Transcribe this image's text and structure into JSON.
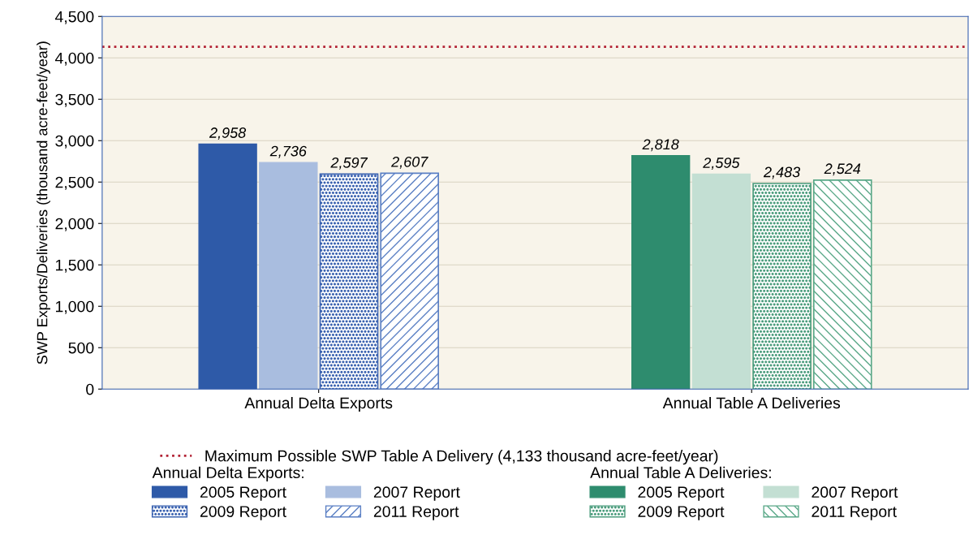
{
  "chart_data": {
    "type": "bar",
    "ylabel": "SWP Exports/Deliveries (thousand acre-feet/year)",
    "categories": [
      "Annual Delta Exports",
      "Annual Table A Deliveries"
    ],
    "series": [
      {
        "name": "2005 Report",
        "color": "#2e5aa8",
        "values": [
          2958,
          null
        ]
      },
      {
        "name": "2007 Report",
        "color": "#a9bddf",
        "values": [
          2736,
          null
        ]
      },
      {
        "name": "2009 Report",
        "color": "#3a62b0",
        "values": [
          2597,
          null
        ]
      },
      {
        "name": "2011 Report",
        "color": "#5a7fc4",
        "values": [
          2607,
          null
        ]
      },
      {
        "name": "2005 Report",
        "color": "#2e8c6e",
        "values": [
          null,
          2818
        ]
      },
      {
        "name": "2007 Report",
        "color": "#c3dfd3",
        "values": [
          null,
          2595
        ]
      },
      {
        "name": "2009 Report",
        "color": "#4a9c7c",
        "values": [
          null,
          2483
        ]
      },
      {
        "name": "2011 Report",
        "color": "#5aa888",
        "values": [
          null,
          2524
        ]
      }
    ],
    "ylim": [
      0,
      4500
    ],
    "yticks": [
      0,
      500,
      {
        "value": 1000,
        "label": "1,000"
      },
      {
        "value": 1500,
        "label": "1,500"
      },
      {
        "value": 2000,
        "label": "2,000"
      },
      {
        "value": 2500,
        "label": "2,500"
      },
      {
        "value": 3000,
        "label": "3,000"
      },
      {
        "value": 3500,
        "label": "3,500"
      },
      {
        "value": 4000,
        "label": "4,000"
      },
      {
        "value": 4500,
        "label": "4,500"
      }
    ],
    "value_labels": [
      "2,958",
      "2,736",
      "2,597",
      "2,607",
      "2,818",
      "2,595",
      "2,483",
      "2,524"
    ],
    "ref_lines": [
      {
        "axis": "y",
        "value": 4133,
        "label": "Maximum Possible SWP Table A Delivery (4,133 thousand acre-feet/year)",
        "color": "#b22234",
        "line_style": "dotted"
      }
    ],
    "annotations": [
      "Annual Delta Exports:",
      "Annual Table A Deliveries:"
    ],
    "grid": "y",
    "legend": "bottom"
  }
}
